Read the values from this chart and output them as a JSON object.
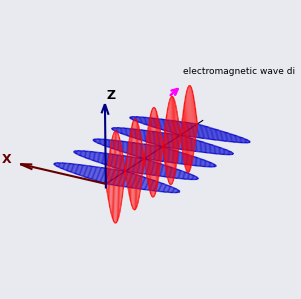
{
  "background_color": "#e8eaf0",
  "wave_color_E": "#ff0000",
  "wave_color_B": "#0000cc",
  "axis_color_z": "#000080",
  "axis_color_x": "#660000",
  "prop_axis_color": "#000000",
  "annotation_text": "electromagnetic wave di",
  "annotation_color": "#000000",
  "arrow_color": "#ff00ff",
  "n_cycles": 2.5,
  "n_lines": 80,
  "amplitude": 1.0,
  "elev": 22,
  "azim": -60,
  "figw": 3.01,
  "figh": 2.99,
  "dpi": 100
}
